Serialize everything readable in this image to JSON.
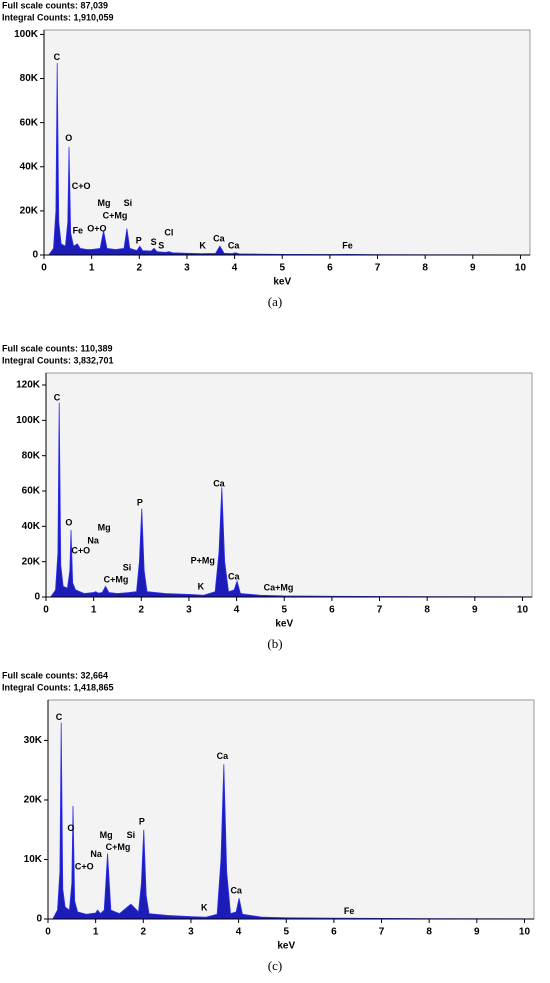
{
  "chart_data": [
    {
      "type": "area",
      "header": [
        "Full scale counts: 87,039",
        "Integral Counts: 1,910,059"
      ],
      "x": [
        0.1,
        0.2,
        0.25,
        0.277,
        0.31,
        0.36,
        0.45,
        0.5,
        0.525,
        0.56,
        0.62,
        0.7,
        0.76,
        0.9,
        1.0,
        1.18,
        1.25,
        1.32,
        1.5,
        1.68,
        1.74,
        1.8,
        1.95,
        2.01,
        2.07,
        2.25,
        2.31,
        2.37,
        2.55,
        2.62,
        2.7,
        3.0,
        3.31,
        3.6,
        3.69,
        3.78,
        3.95,
        4.01,
        4.1,
        4.5,
        5,
        6,
        6.4,
        7,
        8,
        10
      ],
      "values": [
        0,
        3000,
        20000,
        87000,
        15000,
        5000,
        4000,
        15000,
        49000,
        10000,
        4000,
        5000,
        3000,
        2500,
        2500,
        3000,
        11000,
        3000,
        2500,
        3000,
        12000,
        3000,
        2000,
        4000,
        2000,
        1800,
        3000,
        1500,
        1200,
        1500,
        1000,
        800,
        600,
        700,
        4000,
        800,
        600,
        1000,
        500,
        400,
        300,
        200,
        300,
        150,
        100,
        50
      ],
      "color": "#1c1cb8",
      "xlim": [
        0,
        10.2
      ],
      "ylim": [
        0,
        102000
      ],
      "xticks": [
        0,
        1,
        2,
        3,
        4,
        5,
        6,
        7,
        8,
        9,
        10
      ],
      "yticks": [
        0,
        {
          "value": 20000,
          "label": "20K"
        },
        {
          "value": 40000,
          "label": "40K"
        },
        {
          "value": 60000,
          "label": "60K"
        },
        {
          "value": 80000,
          "label": "80K"
        },
        {
          "value": 100000,
          "label": "100K"
        }
      ],
      "xlabel": "keV",
      "caption": "(a)",
      "annotations": [
        {
          "text": "C",
          "x": 0.27,
          "y": 89500
        },
        {
          "text": "O",
          "x": 0.52,
          "y": 52700
        },
        {
          "text": "C+O",
          "x": 0.78,
          "y": 30900
        },
        {
          "text": "Fe",
          "x": 0.71,
          "y": 10900
        },
        {
          "text": "Mg",
          "x": 1.26,
          "y": 23200
        },
        {
          "text": "C+Mg",
          "x": 1.49,
          "y": 17700
        },
        {
          "text": "O+O",
          "x": 1.11,
          "y": 11800
        },
        {
          "text": "Si",
          "x": 1.76,
          "y": 23200
        },
        {
          "text": "P",
          "x": 1.99,
          "y": 6400
        },
        {
          "text": "S",
          "x": 2.3,
          "y": 5500
        },
        {
          "text": "S",
          "x": 2.46,
          "y": 4100
        },
        {
          "text": "Cl",
          "x": 2.62,
          "y": 10000
        },
        {
          "text": "K",
          "x": 3.33,
          "y": 4100
        },
        {
          "text": "Ca",
          "x": 3.67,
          "y": 7300
        },
        {
          "text": "Ca",
          "x": 3.98,
          "y": 4100
        },
        {
          "text": "Fe",
          "x": 6.37,
          "y": 4100
        }
      ]
    },
    {
      "type": "area",
      "header": [
        "Full scale counts: 110,389",
        "Integral Counts: 3,832,701"
      ],
      "x": [
        0.1,
        0.2,
        0.25,
        0.277,
        0.31,
        0.36,
        0.45,
        0.5,
        0.525,
        0.56,
        0.62,
        0.8,
        1.0,
        1.04,
        1.1,
        1.18,
        1.25,
        1.32,
        1.5,
        1.74,
        1.9,
        1.96,
        2.01,
        2.06,
        2.12,
        2.5,
        3.0,
        3.31,
        3.55,
        3.63,
        3.69,
        3.75,
        3.83,
        3.95,
        4.01,
        4.08,
        4.5,
        5,
        6,
        7,
        8,
        10
      ],
      "values": [
        0,
        4000,
        25000,
        110000,
        18000,
        6000,
        5000,
        15000,
        38000,
        8000,
        4000,
        2000,
        2500,
        3000,
        2200,
        2500,
        6000,
        2500,
        2000,
        2500,
        3000,
        20000,
        50000,
        15000,
        3000,
        2000,
        1500,
        1000,
        3000,
        25000,
        62000,
        20000,
        3000,
        4000,
        9000,
        2000,
        1000,
        600,
        400,
        300,
        200,
        100
      ],
      "color": "#1c1cb8",
      "xlim": [
        0,
        10.2
      ],
      "ylim": [
        0,
        126800
      ],
      "xticks": [
        0,
        1,
        2,
        3,
        4,
        5,
        6,
        7,
        8,
        9,
        10
      ],
      "yticks": [
        0,
        {
          "value": 20000,
          "label": "20K"
        },
        {
          "value": 40000,
          "label": "40K"
        },
        {
          "value": 60000,
          "label": "60K"
        },
        {
          "value": 80000,
          "label": "80K"
        },
        {
          "value": 100000,
          "label": "100K"
        },
        {
          "value": 120000,
          "label": "120K"
        }
      ],
      "xlabel": "keV",
      "caption": "(b)",
      "annotations": [
        {
          "text": "C",
          "x": 0.23,
          "y": 112600
        },
        {
          "text": "O",
          "x": 0.48,
          "y": 41900
        },
        {
          "text": "Mg",
          "x": 1.22,
          "y": 39000
        },
        {
          "text": "Na",
          "x": 0.99,
          "y": 31700
        },
        {
          "text": "C+O",
          "x": 0.73,
          "y": 26000
        },
        {
          "text": "Si",
          "x": 1.7,
          "y": 16400
        },
        {
          "text": "C+Mg",
          "x": 1.47,
          "y": 9600
        },
        {
          "text": "P",
          "x": 1.97,
          "y": 53200
        },
        {
          "text": "Ca",
          "x": 3.63,
          "y": 64000
        },
        {
          "text": "P+Mg",
          "x": 3.29,
          "y": 20400
        },
        {
          "text": "K",
          "x": 3.25,
          "y": 5700
        },
        {
          "text": "Ca",
          "x": 3.94,
          "y": 11300
        },
        {
          "text": "Ca+Mg",
          "x": 4.88,
          "y": 5100
        }
      ]
    },
    {
      "type": "area",
      "header": [
        "Full scale counts: 32,664",
        "Integral Counts: 1,418,865"
      ],
      "x": [
        0.1,
        0.2,
        0.25,
        0.277,
        0.31,
        0.36,
        0.45,
        0.5,
        0.525,
        0.56,
        0.62,
        0.8,
        1.0,
        1.04,
        1.1,
        1.18,
        1.25,
        1.32,
        1.5,
        1.74,
        1.9,
        1.96,
        2.01,
        2.06,
        2.12,
        2.5,
        3.0,
        3.31,
        3.55,
        3.63,
        3.69,
        3.75,
        3.83,
        3.95,
        4.01,
        4.08,
        4.5,
        5,
        6,
        7,
        8,
        10
      ],
      "values": [
        0,
        1500,
        8000,
        33000,
        5000,
        2000,
        1500,
        6000,
        19000,
        3000,
        1200,
        800,
        1000,
        1500,
        900,
        1500,
        11000,
        1500,
        900,
        2500,
        1200,
        6000,
        15000,
        4000,
        900,
        600,
        400,
        300,
        800,
        10000,
        26000,
        8000,
        900,
        1200,
        3500,
        800,
        300,
        200,
        150,
        100,
        60,
        30
      ],
      "color": "#1c1cb8",
      "xlim": [
        0,
        10.2
      ],
      "ylim": [
        0,
        36800
      ],
      "xticks": [
        0,
        1,
        2,
        3,
        4,
        5,
        6,
        7,
        8,
        9,
        10
      ],
      "yticks": [
        0,
        {
          "value": 10000,
          "label": "10K"
        },
        {
          "value": 20000,
          "label": "20K"
        },
        {
          "value": 30000,
          "label": "30K"
        }
      ],
      "xlabel": "keV",
      "caption": "(c)",
      "annotations": [
        {
          "text": "C",
          "x": 0.23,
          "y": 33800
        },
        {
          "text": "O",
          "x": 0.48,
          "y": 15200
        },
        {
          "text": "Mg",
          "x": 1.22,
          "y": 14000
        },
        {
          "text": "Si",
          "x": 1.74,
          "y": 14000
        },
        {
          "text": "C+Mg",
          "x": 1.47,
          "y": 12000
        },
        {
          "text": "Na",
          "x": 1.01,
          "y": 10800
        },
        {
          "text": "C+O",
          "x": 0.76,
          "y": 8750
        },
        {
          "text": "P",
          "x": 1.97,
          "y": 16300
        },
        {
          "text": "Ca",
          "x": 3.66,
          "y": 27300
        },
        {
          "text": "Ca",
          "x": 3.95,
          "y": 4700
        },
        {
          "text": "K",
          "x": 3.28,
          "y": 1850
        },
        {
          "text": "Fe",
          "x": 6.32,
          "y": 1200
        }
      ]
    }
  ]
}
